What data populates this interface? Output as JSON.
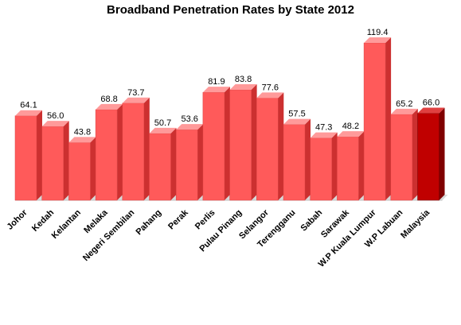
{
  "chart_data": {
    "type": "bar",
    "title": "Broadband Penetration Rates by  State 2012",
    "categories": [
      "Johor",
      "Kedah",
      "Kelantan",
      "Melaka",
      "Negeri Sembilan",
      "Pahang",
      "Perak",
      "Perlis",
      "Pulau Pinang",
      "Selangor",
      "Terengganu",
      "Sabah",
      "Sarawak",
      "W.P Kuala Lumpur",
      "W.P Labuan",
      "Malaysia"
    ],
    "values": [
      64.1,
      56.0,
      43.8,
      68.8,
      73.7,
      50.7,
      53.6,
      81.9,
      83.8,
      77.6,
      57.5,
      47.3,
      48.2,
      119.4,
      65.2,
      66.0
    ],
    "data_labels": [
      "64.1",
      "56.0",
      "43.8",
      "68.8",
      "73.7",
      "50.7",
      "53.6",
      "81.9",
      "83.8",
      "77.6",
      "57.5",
      "47.3",
      "48.2",
      "119.4",
      "65.2",
      "66.0"
    ],
    "highlight_category": "Malaysia",
    "ylim": [
      0,
      125
    ],
    "grid": false,
    "legend": "none",
    "xlabel": "",
    "ylabel": "",
    "colors": {
      "bar_front": "#ff5a5a",
      "bar_top": "#ff9a9a",
      "bar_side": "#cc3030",
      "highlight_front": "#c00000",
      "highlight_top": "#e04040",
      "highlight_side": "#800000",
      "floor": "#d9d9d9",
      "back_wall": "#f2f2f2"
    }
  }
}
